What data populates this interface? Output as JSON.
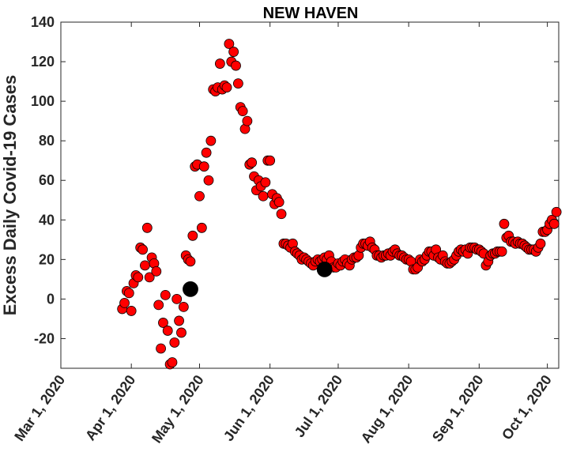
{
  "chart_data": {
    "type": "scatter",
    "title": "NEW HAVEN",
    "xlabel": "",
    "ylabel": "Excess Daily Covid-19 Cases",
    "xlim": [
      "2020-03-01",
      "2020-10-06"
    ],
    "ylim": [
      -35,
      140
    ],
    "grid": false,
    "legend": "none",
    "x_ticks": [
      {
        "date": "2020-03-01",
        "label": "Mar 1, 2020"
      },
      {
        "date": "2020-04-01",
        "label": "Apr 1, 2020"
      },
      {
        "date": "2020-05-01",
        "label": "May 1, 2020"
      },
      {
        "date": "2020-06-01",
        "label": "Jun 1, 2020"
      },
      {
        "date": "2020-07-01",
        "label": "Jul 1, 2020"
      },
      {
        "date": "2020-08-01",
        "label": "Aug 1, 2020"
      },
      {
        "date": "2020-09-01",
        "label": "Sep 1, 2020"
      },
      {
        "date": "2020-10-01",
        "label": "Oct 1, 2020"
      }
    ],
    "y_ticks": [
      -20,
      0,
      20,
      40,
      60,
      80,
      100,
      120,
      140
    ],
    "series": [
      {
        "color": "#ff0000",
        "edge_color": "#000000",
        "marker": "circle",
        "x": [
          "2020-03-28",
          "2020-03-29",
          "2020-03-30",
          "2020-03-31",
          "2020-04-01",
          "2020-04-02",
          "2020-04-03",
          "2020-04-04",
          "2020-04-05",
          "2020-04-06",
          "2020-04-07",
          "2020-04-08",
          "2020-04-09",
          "2020-04-10",
          "2020-04-11",
          "2020-04-12",
          "2020-04-13",
          "2020-04-14",
          "2020-04-15",
          "2020-04-16",
          "2020-04-17",
          "2020-04-18",
          "2020-04-19",
          "2020-04-20",
          "2020-04-21",
          "2020-04-22",
          "2020-04-23",
          "2020-04-24",
          "2020-04-25",
          "2020-04-26",
          "2020-04-27",
          "2020-04-28",
          "2020-04-29",
          "2020-04-30",
          "2020-05-01",
          "2020-05-02",
          "2020-05-03",
          "2020-05-04",
          "2020-05-05",
          "2020-05-06",
          "2020-05-07",
          "2020-05-08",
          "2020-05-09",
          "2020-05-10",
          "2020-05-11",
          "2020-05-12",
          "2020-05-13",
          "2020-05-14",
          "2020-05-15",
          "2020-05-16",
          "2020-05-17",
          "2020-05-18",
          "2020-05-19",
          "2020-05-20",
          "2020-05-21",
          "2020-05-22",
          "2020-05-23",
          "2020-05-24",
          "2020-05-25",
          "2020-05-26",
          "2020-05-27",
          "2020-05-28",
          "2020-05-29",
          "2020-05-30",
          "2020-05-31",
          "2020-06-01",
          "2020-06-02",
          "2020-06-03",
          "2020-06-04",
          "2020-06-05",
          "2020-06-06",
          "2020-06-07",
          "2020-06-08",
          "2020-06-09",
          "2020-06-10",
          "2020-06-11",
          "2020-06-12",
          "2020-06-13",
          "2020-06-14",
          "2020-06-15",
          "2020-06-16",
          "2020-06-17",
          "2020-06-18",
          "2020-06-19",
          "2020-06-20",
          "2020-06-21",
          "2020-06-22",
          "2020-06-23",
          "2020-06-24",
          "2020-06-25",
          "2020-06-26",
          "2020-06-27",
          "2020-06-28",
          "2020-06-29",
          "2020-06-30",
          "2020-07-01",
          "2020-07-02",
          "2020-07-03",
          "2020-07-04",
          "2020-07-05",
          "2020-07-06",
          "2020-07-07",
          "2020-07-08",
          "2020-07-09",
          "2020-07-10",
          "2020-07-11",
          "2020-07-12",
          "2020-07-13",
          "2020-07-14",
          "2020-07-15",
          "2020-07-16",
          "2020-07-17",
          "2020-07-18",
          "2020-07-19",
          "2020-07-20",
          "2020-07-21",
          "2020-07-22",
          "2020-07-23",
          "2020-07-24",
          "2020-07-25",
          "2020-07-26",
          "2020-07-27",
          "2020-07-28",
          "2020-07-29",
          "2020-07-30",
          "2020-07-31",
          "2020-08-01",
          "2020-08-02",
          "2020-08-03",
          "2020-08-04",
          "2020-08-05",
          "2020-08-06",
          "2020-08-07",
          "2020-08-08",
          "2020-08-09",
          "2020-08-10",
          "2020-08-11",
          "2020-08-12",
          "2020-08-13",
          "2020-08-14",
          "2020-08-15",
          "2020-08-16",
          "2020-08-17",
          "2020-08-18",
          "2020-08-19",
          "2020-08-20",
          "2020-08-21",
          "2020-08-22",
          "2020-08-23",
          "2020-08-24",
          "2020-08-25",
          "2020-08-26",
          "2020-08-27",
          "2020-08-28",
          "2020-08-29",
          "2020-08-30",
          "2020-08-31",
          "2020-09-01",
          "2020-09-02",
          "2020-09-03",
          "2020-09-04",
          "2020-09-05",
          "2020-09-06",
          "2020-09-07",
          "2020-09-08",
          "2020-09-09",
          "2020-09-10",
          "2020-09-11",
          "2020-09-12",
          "2020-09-13",
          "2020-09-14",
          "2020-09-15",
          "2020-09-16",
          "2020-09-17",
          "2020-09-18",
          "2020-09-19",
          "2020-09-20",
          "2020-09-21",
          "2020-09-22",
          "2020-09-23",
          "2020-09-24",
          "2020-09-25",
          "2020-09-26",
          "2020-09-27",
          "2020-09-28",
          "2020-09-29",
          "2020-09-30",
          "2020-10-01",
          "2020-10-02",
          "2020-10-03",
          "2020-10-04",
          "2020-10-05"
        ],
        "y": [
          -5,
          -2,
          4,
          3,
          -6,
          8,
          12,
          11,
          26,
          25,
          17,
          36,
          11,
          21,
          18,
          14,
          -3,
          -25,
          -12,
          2,
          -16,
          -33,
          -32,
          -22,
          0,
          -11,
          -17,
          -4,
          22,
          20,
          19,
          32,
          67,
          68,
          52,
          36,
          67,
          74,
          60,
          80,
          106,
          105,
          107,
          119,
          106,
          108,
          107,
          129,
          120,
          125,
          118,
          109,
          97,
          95,
          86,
          90,
          68,
          69,
          62,
          55,
          60,
          57,
          52,
          59,
          70,
          70,
          53,
          48,
          51,
          49,
          43,
          28,
          28,
          27,
          26,
          28,
          24,
          23,
          22,
          20,
          21,
          20,
          19,
          18,
          17,
          19,
          20,
          19,
          20,
          21,
          20,
          22,
          19,
          16,
          16,
          18,
          17,
          19,
          20,
          18,
          17,
          20,
          21,
          21,
          22,
          26,
          28,
          28,
          27,
          29,
          26,
          25,
          22,
          22,
          21,
          22,
          22,
          23,
          22,
          24,
          25,
          23,
          22,
          22,
          21,
          20,
          20,
          19,
          15,
          15,
          16,
          20,
          19,
          20,
          22,
          24,
          24,
          22,
          25,
          21,
          20,
          22,
          19,
          18,
          18,
          19,
          20,
          22,
          24,
          25,
          24,
          25,
          23,
          26,
          26,
          26,
          25,
          25,
          24,
          23,
          17,
          19,
          22,
          23,
          23,
          24,
          24,
          24,
          38,
          31,
          32,
          29,
          29,
          28,
          29,
          28,
          28,
          27,
          26,
          25,
          25,
          25,
          24,
          26,
          28,
          34,
          34,
          35,
          38,
          40,
          38,
          44
        ],
        "markers": [
          {
            "x": "2020-04-27",
            "y": 5,
            "color": "#000000"
          },
          {
            "x": "2020-06-25",
            "y": 15,
            "color": "#000000"
          }
        ]
      }
    ]
  }
}
